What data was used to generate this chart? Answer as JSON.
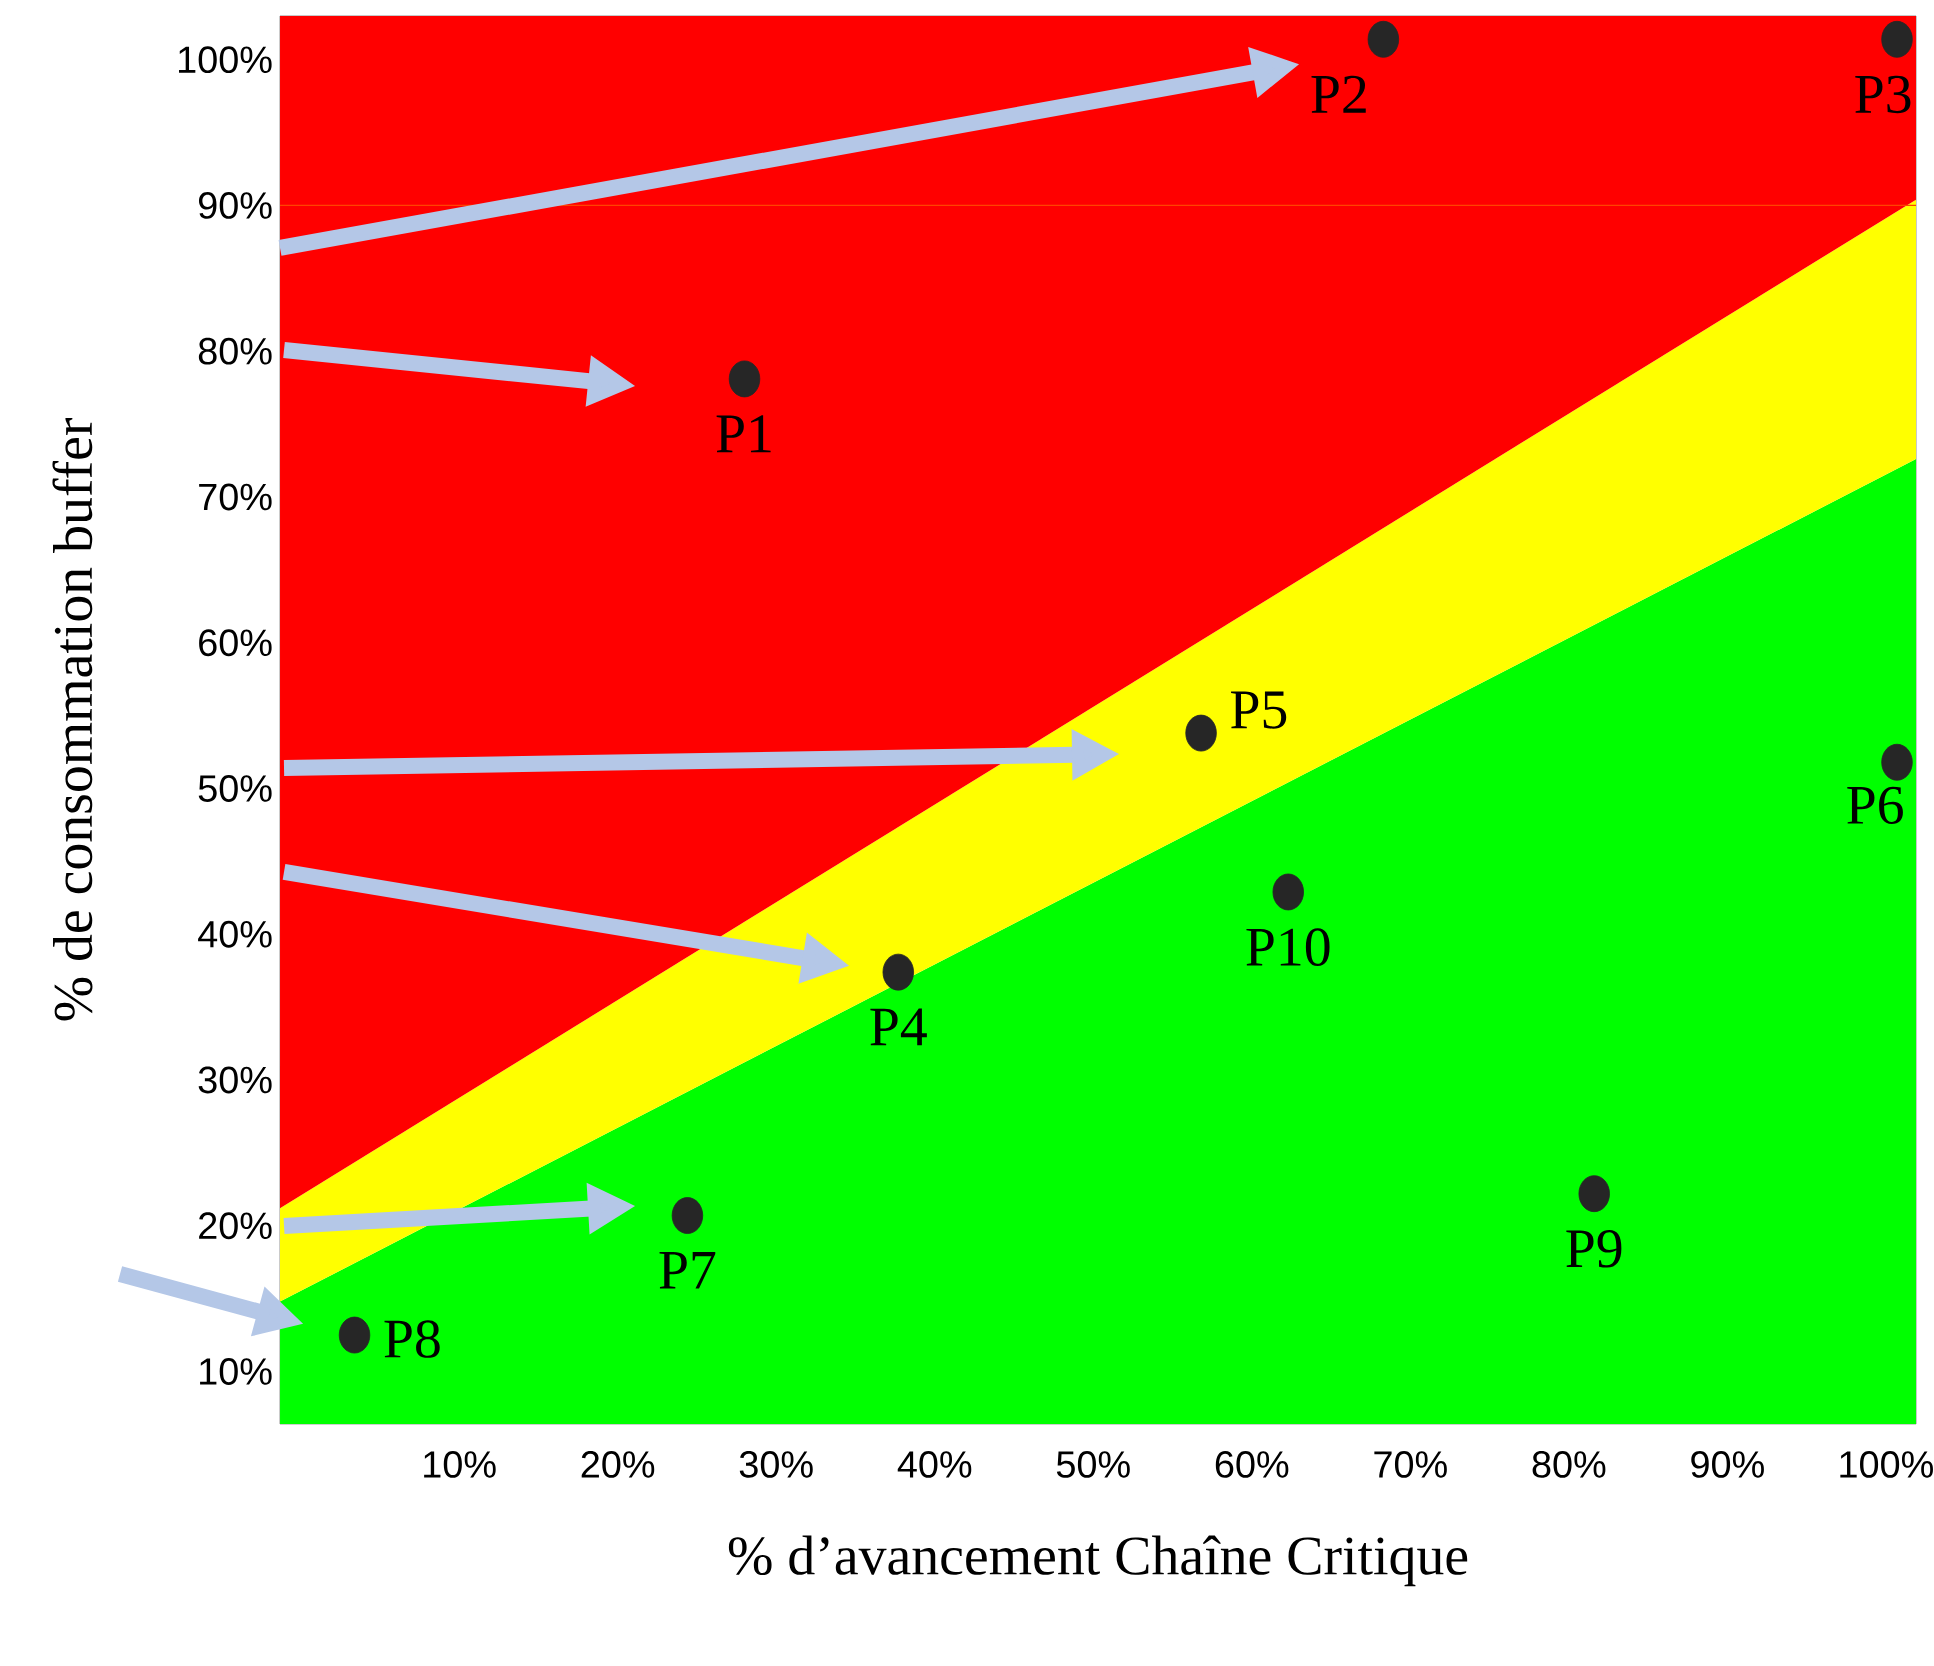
{
  "chart_data": {
    "type": "area",
    "stacked": true,
    "xlabel": "% d’avancement Chaîne Critique",
    "ylabel": "% de consommation buffer",
    "xlim": [
      -1.3,
      101.9
    ],
    "ylim": [
      6.4,
      103
    ],
    "xticks": [
      {
        "value": 10,
        "label": "10%"
      },
      {
        "value": 20,
        "label": "20%"
      },
      {
        "value": 30,
        "label": "30%"
      },
      {
        "value": 40,
        "label": "40%"
      },
      {
        "value": 50,
        "label": "50%"
      },
      {
        "value": 60,
        "label": "60%"
      },
      {
        "value": 70,
        "label": "70%"
      },
      {
        "value": 80,
        "label": "80%"
      },
      {
        "value": 90,
        "label": "90%"
      },
      {
        "value": 100,
        "label": "100%"
      }
    ],
    "yticks": [
      {
        "value": 10,
        "label": "10%"
      },
      {
        "value": 20,
        "label": "20%"
      },
      {
        "value": 30,
        "label": "30%"
      },
      {
        "value": 40,
        "label": "40%"
      },
      {
        "value": 50,
        "label": "50%"
      },
      {
        "value": 60,
        "label": "60%"
      },
      {
        "value": 70,
        "label": "70%"
      },
      {
        "value": 80,
        "label": "80%"
      },
      {
        "value": 90,
        "label": "90%"
      },
      {
        "value": 100,
        "label": "100%"
      }
    ],
    "series": [
      {
        "color": "#00ff00",
        "x": [
          -1.3,
          101.9
        ],
        "values": [
          14.8,
          72.6
        ]
      },
      {
        "color": "#ffff00",
        "x": [
          -1.3,
          101.9
        ],
        "values": [
          6.4,
          17.8
        ]
      },
      {
        "color": "#ff0000",
        "x": [
          -1.3,
          101.9
        ],
        "values": [
          81.8,
          12.6
        ]
      },
      {
        "type": "scatter",
        "color": "#262626",
        "x": [
          28.0,
          68.3,
          100.7,
          37.7,
          56.8,
          100.7,
          24.4,
          3.4,
          81.6,
          62.3
        ],
        "values": [
          78.1,
          101.4,
          101.4,
          37.4,
          53.8,
          51.8,
          20.7,
          12.5,
          22.2,
          42.9
        ]
      }
    ],
    "ref_lines": [
      {
        "axis": "y",
        "value": 90,
        "color": "#ff4400"
      }
    ],
    "annotations": [
      {
        "text": "P1",
        "x": 28.0,
        "y": 78.1
      },
      {
        "text": "P2",
        "x": 68.3,
        "y": 101.4
      },
      {
        "text": "P3",
        "x": 100.7,
        "y": 101.4
      },
      {
        "text": "P4",
        "x": 37.7,
        "y": 37.4
      },
      {
        "text": "P5",
        "x": 56.8,
        "y": 53.8
      },
      {
        "text": "P6",
        "x": 100.7,
        "y": 51.8
      },
      {
        "text": "P7",
        "x": 24.4,
        "y": 20.7
      },
      {
        "text": "P8",
        "x": 3.4,
        "y": 12.5
      },
      {
        "text": "P9",
        "x": 81.6,
        "y": 22.2
      },
      {
        "text": "P10",
        "x": 62.3,
        "y": 42.9
      }
    ]
  }
}
